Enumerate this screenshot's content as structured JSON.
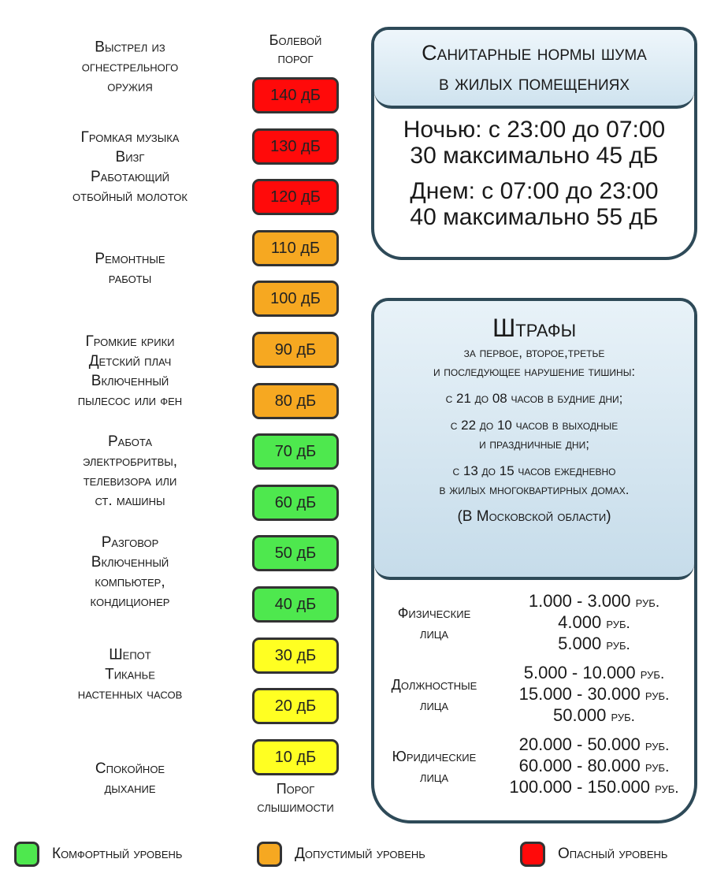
{
  "colors": {
    "dangerous": "#ff0a0a",
    "acceptable": "#f6a821",
    "comfortable": "#4ee84e",
    "quiet": "#ffff22"
  },
  "pain_threshold_label": [
    "Болевой",
    "порог"
  ],
  "hearing_threshold_label": [
    "Порог",
    "слышимости"
  ],
  "levels": [
    {
      "value": "140 дБ",
      "zone": "dangerous"
    },
    {
      "value": "130 дБ",
      "zone": "dangerous"
    },
    {
      "value": "120 дБ",
      "zone": "dangerous"
    },
    {
      "value": "110 дБ",
      "zone": "acceptable"
    },
    {
      "value": "100 дБ",
      "zone": "acceptable"
    },
    {
      "value": "90 дБ",
      "zone": "acceptable"
    },
    {
      "value": "80 дБ",
      "zone": "acceptable"
    },
    {
      "value": "70 дБ",
      "zone": "comfortable"
    },
    {
      "value": "60 дБ",
      "zone": "comfortable"
    },
    {
      "value": "50 дБ",
      "zone": "comfortable"
    },
    {
      "value": "40 дБ",
      "zone": "comfortable"
    },
    {
      "value": "30 дБ",
      "zone": "quiet"
    },
    {
      "value": "20 дБ",
      "zone": "quiet"
    },
    {
      "value": "10 дБ",
      "zone": "quiet"
    }
  ],
  "sources": [
    [
      "Выстрел из",
      "огнестрельного",
      "оружия"
    ],
    [
      "Громкая музыка",
      "Визг",
      "Работающий",
      "отбойный молоток"
    ],
    [
      "Ремонтные",
      "работы"
    ],
    [
      "Громкие крики",
      "Детский плач",
      "Включенный",
      "пылесос или фен"
    ],
    [
      "Работа",
      "электробритвы,",
      "телевизора или",
      "ст. машины"
    ],
    [
      "Разговор",
      "Включенный",
      "компьютер,",
      "кондиционер"
    ],
    [
      "Шепот",
      "Тиканье",
      "настенных часов"
    ],
    [
      "Спокойное",
      "дыхание"
    ]
  ],
  "norms": {
    "title": [
      "Санитарные нормы шума",
      "в жилых помещениях"
    ],
    "night": [
      "Ночью: с 23:00 до 07:00",
      "30 максимально 45 дБ"
    ],
    "day": [
      "Днем: с 07:00 до 23:00",
      "40 максимально 55 дБ"
    ]
  },
  "fines": {
    "title": "Штрафы",
    "subtitle": [
      "за первое, второе,третье",
      "и последующее нарушение тишины:"
    ],
    "periods": [
      [
        "с 21 до 08 часов в будние дни;"
      ],
      [
        "с 22 до 10 часов в выходные",
        "и праздничные дни;"
      ],
      [
        "с 13 до 15 часов ежедневно",
        "в жилых многоквартирных домах."
      ]
    ],
    "region": "(В Московской области)",
    "categories": [
      {
        "who": [
          "Физические",
          "лица"
        ],
        "amounts": [
          "1.000 - 3.000",
          "4.000",
          "5.000"
        ]
      },
      {
        "who": [
          "Должностные",
          "лица"
        ],
        "amounts": [
          "5.000 - 10.000",
          "15.000 - 30.000",
          "50.000"
        ]
      },
      {
        "who": [
          "Юридические",
          "лица"
        ],
        "amounts": [
          "20.000 - 50.000",
          "60.000 - 80.000",
          "100.000 - 150.000"
        ]
      }
    ],
    "currency": "руб."
  },
  "legend": [
    {
      "label": "Комфортный уровень",
      "zone": "comfortable"
    },
    {
      "label": "Допустимый уровень",
      "zone": "acceptable"
    },
    {
      "label": "Опасный уровень",
      "zone": "dangerous"
    }
  ]
}
